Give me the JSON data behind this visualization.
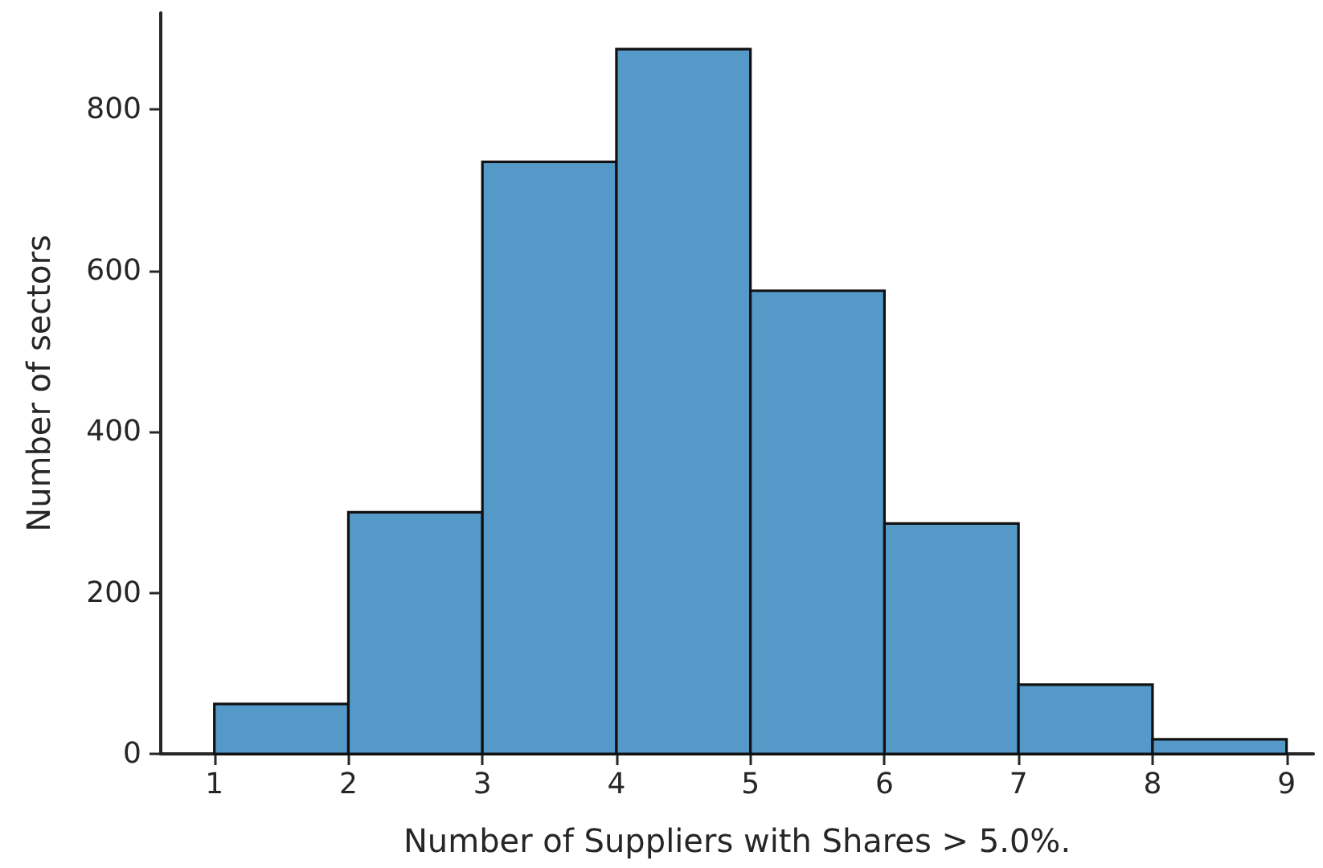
{
  "chart_data": {
    "type": "histogram",
    "xlabel": "Number of Suppliers with Shares > 5.0%.",
    "ylabel": "Number of sectors",
    "bins": [
      1,
      2,
      3,
      4,
      5,
      6,
      7,
      8,
      9
    ],
    "values": [
      62,
      300,
      735,
      875,
      575,
      286,
      86,
      18
    ],
    "color": "#5499c7",
    "xlim": [
      0.6,
      9.2
    ],
    "xticks": [
      1,
      2,
      3,
      4,
      5,
      6,
      7,
      8,
      9
    ],
    "ylim": [
      0,
      920
    ],
    "yticks": [
      0,
      200,
      400,
      600,
      800
    ],
    "grid": false
  }
}
